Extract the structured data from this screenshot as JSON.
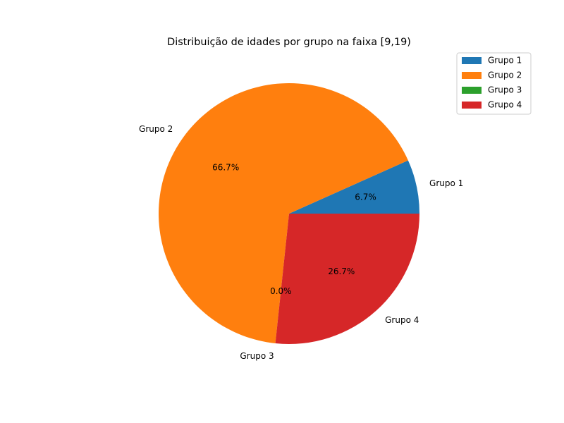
{
  "chart_data": {
    "type": "pie",
    "title": "Distribuição de idades por grupo na faixa [9,19)",
    "categories": [
      "Grupo 1",
      "Grupo 2",
      "Grupo 3",
      "Grupo 4"
    ],
    "values": [
      6.7,
      66.7,
      0.0,
      26.7
    ],
    "pct_labels": [
      "6.7%",
      "66.7%",
      "0.0%",
      "26.7%"
    ],
    "colors": [
      "#1f77b4",
      "#ff7f0e",
      "#2ca02c",
      "#d62728"
    ],
    "start_angle_deg": 0,
    "direction": "counterclockwise",
    "legend": {
      "placement": "top-right",
      "entries": [
        "Grupo 1",
        "Grupo 2",
        "Grupo 3",
        "Grupo 4"
      ]
    }
  }
}
